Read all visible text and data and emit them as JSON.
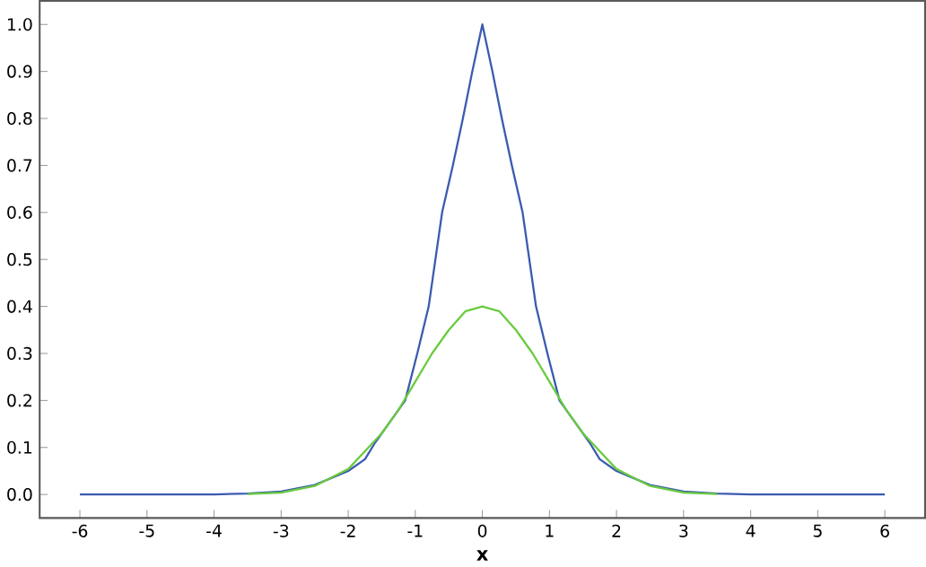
{
  "chart_data": {
    "type": "line",
    "xlabel": "x",
    "xlim": [
      -6.6,
      6.6
    ],
    "ylim": [
      -0.05,
      1.05
    ],
    "xticks": [
      -6,
      -5,
      -4,
      -3,
      -2,
      -1,
      0,
      1,
      2,
      3,
      4,
      5,
      6
    ],
    "yticks": [
      {
        "value": 0,
        "label": "0.0"
      },
      {
        "value": 0.1,
        "label": "0.1"
      },
      {
        "value": 0.2,
        "label": "0.2"
      },
      {
        "value": 0.3,
        "label": "0.3"
      },
      {
        "value": 0.4,
        "label": "0.4"
      },
      {
        "value": 0.5,
        "label": "0.5"
      },
      {
        "value": 0.6,
        "label": "0.6"
      },
      {
        "value": 0.7,
        "label": "0.7"
      },
      {
        "value": 0.8,
        "label": "0.8"
      },
      {
        "value": 0.9,
        "label": "0.9"
      },
      {
        "value": 1,
        "label": "1.0"
      }
    ],
    "grid": false,
    "marker": "none",
    "line_style": "solid",
    "series": [
      {
        "color": "#3b5bb0",
        "x": [
          -6,
          -4,
          -3.5,
          -3,
          -2.5,
          -2,
          -1.75,
          -1.6,
          -1.4,
          -1.15,
          -0.97,
          -0.8,
          -0.7,
          -0.6,
          -0.44,
          -0.29,
          -0.15,
          0,
          0.15,
          0.29,
          0.44,
          0.6,
          0.7,
          0.8,
          0.97,
          1.15,
          1.4,
          1.6,
          1.75,
          2,
          2.5,
          3,
          3.5,
          4,
          6
        ],
        "values": [
          0,
          0,
          0.002,
          0.006,
          0.02,
          0.05,
          0.075,
          0.11,
          0.15,
          0.2,
          0.3,
          0.4,
          0.5,
          0.6,
          0.7,
          0.8,
          0.9,
          1,
          0.9,
          0.8,
          0.7,
          0.6,
          0.5,
          0.4,
          0.3,
          0.2,
          0.15,
          0.11,
          0.075,
          0.05,
          0.02,
          0.006,
          0.002,
          0,
          0
        ]
      },
      {
        "color": "#6acb3f",
        "x": [
          -3.5,
          -3,
          -2.5,
          -2,
          -1.5,
          -1.25,
          -1,
          -0.75,
          -0.5,
          -0.25,
          0,
          0.25,
          0.5,
          0.75,
          1,
          1.25,
          1.5,
          2,
          2.5,
          3,
          3.5
        ],
        "values": [
          0.001,
          0.004,
          0.018,
          0.054,
          0.13,
          0.18,
          0.24,
          0.3,
          0.35,
          0.39,
          0.4,
          0.39,
          0.35,
          0.3,
          0.24,
          0.18,
          0.13,
          0.054,
          0.018,
          0.004,
          0.001
        ]
      }
    ]
  }
}
